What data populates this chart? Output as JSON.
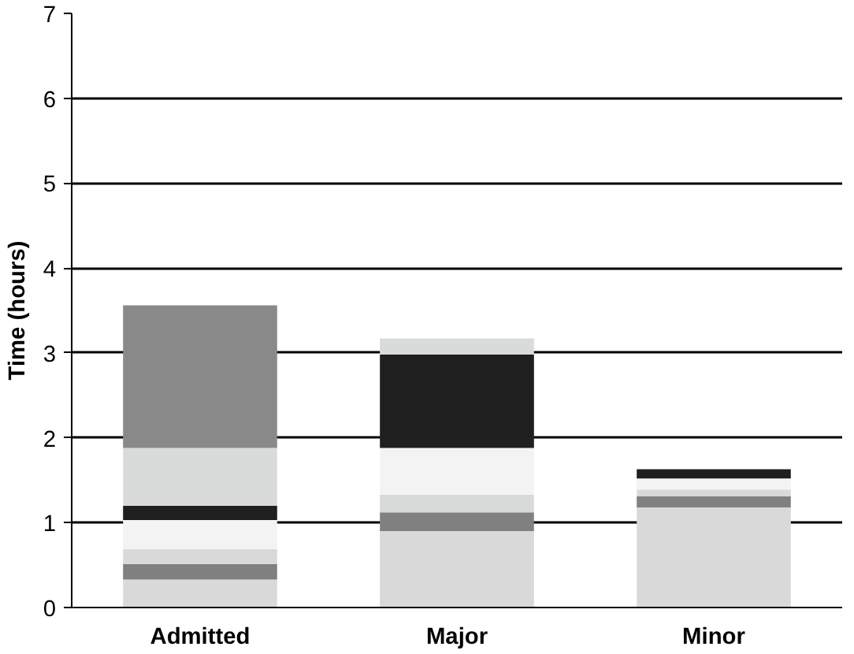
{
  "chart_data": {
    "type": "bar",
    "stacked": true,
    "ylabel": "Time (hours)",
    "categories": [
      "Admitted",
      "Major",
      "Minor"
    ],
    "ylim": [
      0,
      7
    ],
    "yticks": [
      0,
      1,
      2,
      3,
      4,
      5,
      6,
      7
    ],
    "grid": "y",
    "series": [
      {
        "color": "#d9d9d9",
        "values": [
          0.33,
          0.9,
          1.18
        ]
      },
      {
        "color": "#808080",
        "values": [
          0.18,
          0.22,
          0.13
        ]
      },
      {
        "color": "#d8dad9",
        "values": [
          0.18,
          0.21,
          0.08
        ]
      },
      {
        "color": "#f3f3f3",
        "values": [
          0.34,
          0.55,
          0.13
        ]
      },
      {
        "color": "#1f1f1f",
        "values": [
          0.17,
          1.1,
          0.11
        ]
      },
      {
        "color": "#d9dbda",
        "values": [
          0.68,
          0.19,
          0
        ]
      },
      {
        "color": "#898989",
        "values": [
          1.68,
          0,
          0
        ]
      }
    ]
  }
}
